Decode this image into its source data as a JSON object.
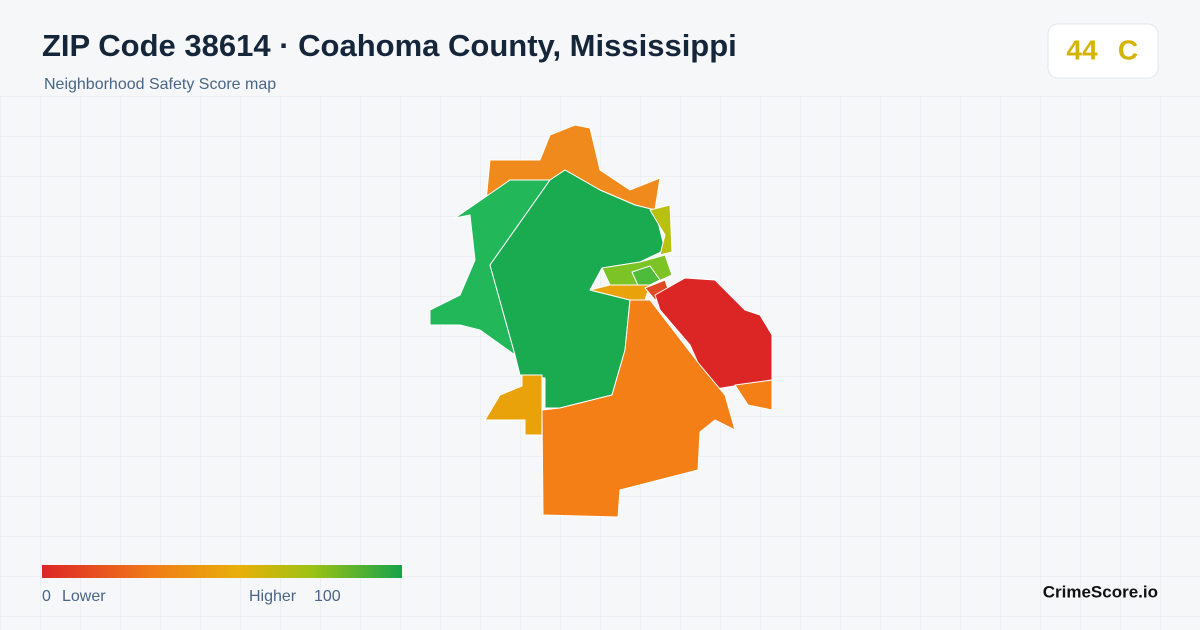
{
  "header": {
    "title": "ZIP Code 38614 · Coahoma County, Mississippi",
    "subtitle": "Neighborhood Safety Score map"
  },
  "score": {
    "value": 44,
    "grade": "C"
  },
  "legend": {
    "min": 0,
    "min_label": "Lower",
    "max_label": "Higher",
    "max": 100
  },
  "brand": "CrimeScore.io"
}
